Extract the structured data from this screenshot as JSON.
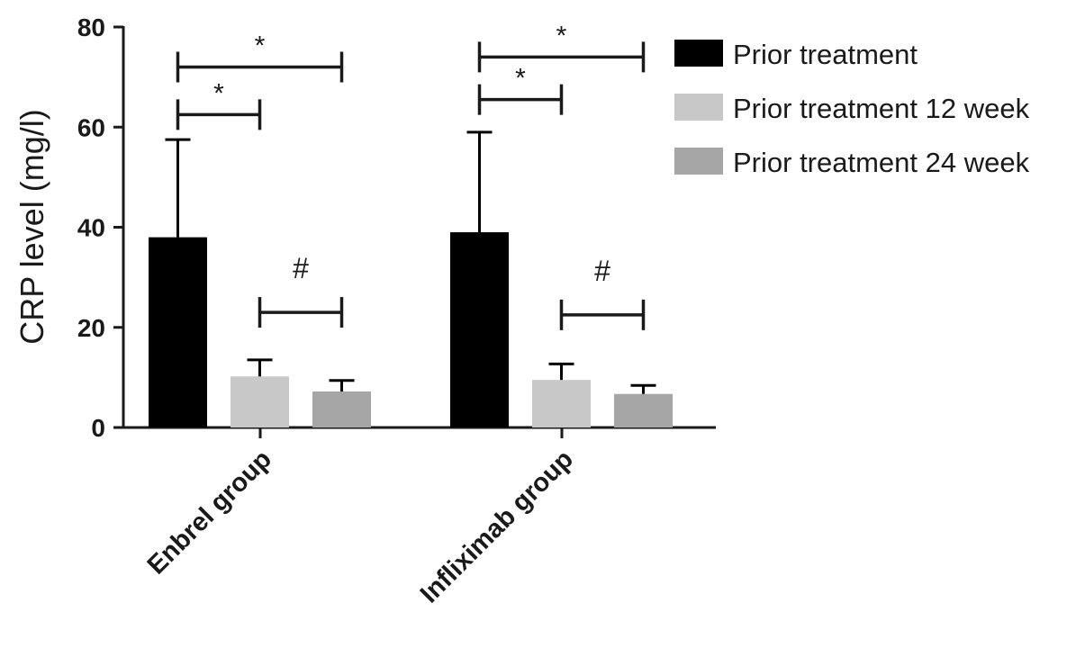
{
  "chart_data": {
    "type": "bar",
    "ylabel": "CRP level (mg/l)",
    "ylim": [
      0,
      80
    ],
    "yticks": [
      "0",
      "20",
      "40",
      "60",
      "80"
    ],
    "categories": [
      "Enbrel group",
      "Infliximab group"
    ],
    "series": [
      {
        "name": "Prior treatment",
        "color": "#000000",
        "values": [
          38,
          39
        ],
        "errors": [
          19.5,
          20
        ]
      },
      {
        "name": "Prior treatment 12 week",
        "color": "#c8c8c8",
        "values": [
          10.2,
          9.5
        ],
        "errors": [
          3.3,
          3.2
        ]
      },
      {
        "name": "Prior treatment 24 week",
        "color": "#a6a6a6",
        "values": [
          7.2,
          6.7
        ],
        "errors": [
          2.2,
          1.7
        ]
      }
    ],
    "annotations": [
      {
        "category": 0,
        "from_series": 0,
        "to_series": 2,
        "y": 72,
        "label": "*"
      },
      {
        "category": 0,
        "from_series": 0,
        "to_series": 1,
        "y": 62.5,
        "label": "*"
      },
      {
        "category": 0,
        "from_series": 1,
        "to_series": 2,
        "y": 23,
        "label": "#"
      },
      {
        "category": 1,
        "from_series": 0,
        "to_series": 2,
        "y": 74,
        "label": "*"
      },
      {
        "category": 1,
        "from_series": 0,
        "to_series": 1,
        "y": 65.5,
        "label": "*"
      },
      {
        "category": 1,
        "from_series": 1,
        "to_series": 2,
        "y": 22.5,
        "label": "#"
      }
    ],
    "legend_position": "top-right",
    "grid": false
  }
}
